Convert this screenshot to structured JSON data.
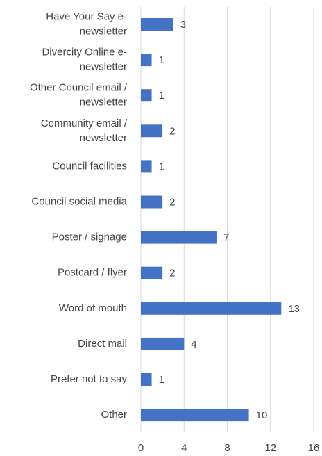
{
  "chart_data": {
    "type": "bar",
    "orientation": "horizontal",
    "categories": [
      [
        "Have Your Say e-",
        "newsletter"
      ],
      [
        "Divercity Online e-",
        "newsletter"
      ],
      [
        "Other Council email /",
        "newsletter"
      ],
      [
        "Community email /",
        "newsletter"
      ],
      [
        "Council facilities"
      ],
      [
        "Council social media"
      ],
      [
        "Poster / signage"
      ],
      [
        "Postcard / flyer"
      ],
      [
        "Word of mouth"
      ],
      [
        "Direct mail"
      ],
      [
        "Prefer not to say"
      ],
      [
        "Other"
      ]
    ],
    "values": [
      3,
      1,
      1,
      2,
      1,
      2,
      7,
      2,
      13,
      4,
      1,
      10
    ],
    "color": "#4472c4",
    "xlim": [
      0,
      16
    ],
    "xticks": [
      0,
      4,
      8,
      12,
      16
    ],
    "grid": true
  }
}
